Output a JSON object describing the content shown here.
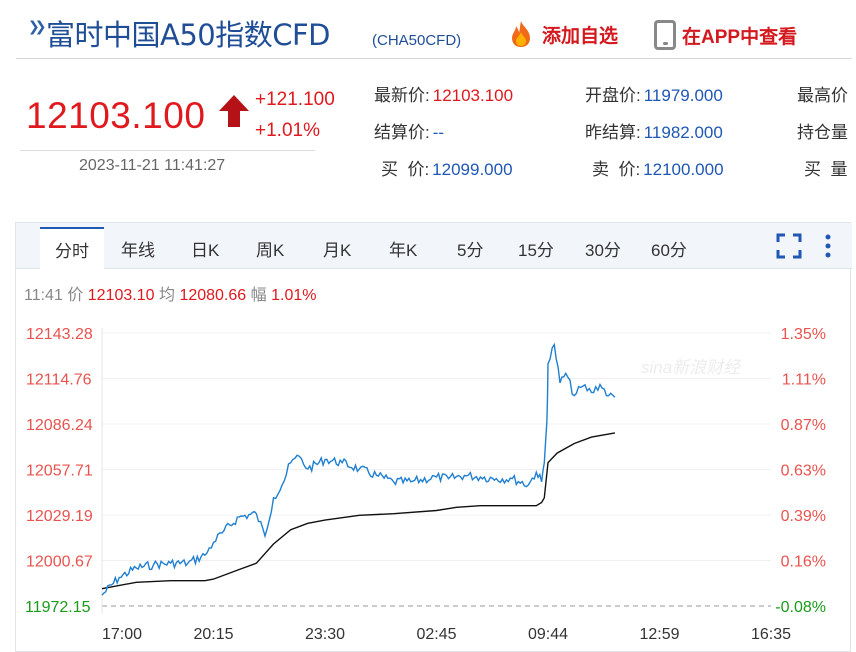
{
  "header": {
    "title": "富时中国A50指数CFD",
    "code": "(CHA50CFD)",
    "add_label": "添加自选",
    "app_label": "在APP中查看"
  },
  "quote": {
    "price": "12103.100",
    "change": "+121.100",
    "change_pct": "+1.01%",
    "datetime": "2023-11-21 11:41:27",
    "fields": {
      "latest": {
        "label": "最新价:",
        "value": "12103.100"
      },
      "open": {
        "label": "开盘价:",
        "value": "11979.000"
      },
      "high": {
        "label": "最高价"
      },
      "settle": {
        "label": "结算价:",
        "value": "--"
      },
      "prev_settle": {
        "label": "昨结算:",
        "value": "11982.000"
      },
      "open_interest": {
        "label": "持仓量"
      },
      "bid": {
        "label": "买  价:",
        "value": "12099.000"
      },
      "ask": {
        "label": "卖  价:",
        "value": "12100.000"
      },
      "bid_vol": {
        "label": "买  量"
      }
    }
  },
  "tabs": [
    "分时",
    "年线",
    "日K",
    "周K",
    "月K",
    "年K",
    "5分",
    "15分",
    "30分",
    "60分"
  ],
  "active_tab": "分时",
  "info": {
    "time": "11:41",
    "price_label": "价",
    "price": "12103.10",
    "avg_label": "均",
    "avg": "12080.66",
    "amp_label": "幅",
    "amp": "1.01%"
  },
  "watermark": "sina新浪财经",
  "colors": {
    "up": "#e0191f",
    "price_line": "#1f7fd1",
    "avg_line": "#111111",
    "down": "#1a9b1a"
  },
  "chart_data": {
    "type": "line",
    "y_left_ticks": [
      "12143.28",
      "12114.76",
      "12086.24",
      "12057.71",
      "12029.19",
      "12000.67",
      "11972.15"
    ],
    "y_right_ticks": [
      "1.35%",
      "1.11%",
      "0.87%",
      "0.63%",
      "0.39%",
      "0.16%",
      "-0.08%"
    ],
    "x_ticks": [
      "17:00",
      "20:15",
      "23:30",
      "02:45",
      "09:44",
      "12:59",
      "16:35"
    ],
    "ylim": [
      11972.15,
      12143.28
    ],
    "series": [
      {
        "kind": "price",
        "x": [
          "17:00",
          "17:30",
          "18:00",
          "18:30",
          "19:00",
          "19:30",
          "20:00",
          "20:15",
          "20:30",
          "21:00",
          "21:30",
          "21:45",
          "22:00",
          "22:15",
          "22:30",
          "22:45",
          "23:00",
          "23:30",
          "00:00",
          "00:30",
          "01:00",
          "01:30",
          "02:00",
          "02:45",
          "03:30",
          "04:30",
          "05:30",
          "06:30",
          "07:30",
          "08:30",
          "09:00",
          "09:20",
          "09:30",
          "09:40",
          "09:44",
          "09:55",
          "10:05",
          "10:15",
          "10:30",
          "10:45",
          "11:00",
          "11:15",
          "11:30",
          "11:41"
        ],
        "values": [
          11979,
          11990,
          11996,
          11998,
          11999,
          11999,
          12004,
          12012,
          12018,
          12028,
          12030,
          12016,
          12040,
          12048,
          12062,
          12066,
          12058,
          12064,
          12062,
          12058,
          12054,
          12050,
          12050,
          12053,
          12052,
          12054,
          12053,
          12052,
          12052,
          12048,
          12056,
          12050,
          12062,
          12088,
          12124,
          12136,
          12112,
          12118,
          12104,
          12110,
          12106,
          12111,
          12104,
          12103
        ]
      },
      {
        "kind": "average",
        "x": [
          "17:00",
          "18:00",
          "19:00",
          "20:00",
          "20:15",
          "21:00",
          "21:30",
          "22:00",
          "22:30",
          "23:00",
          "23:30",
          "00:30",
          "01:30",
          "02:45",
          "04:00",
          "05:30",
          "07:00",
          "08:30",
          "09:00",
          "09:20",
          "09:30",
          "09:44",
          "10:00",
          "10:30",
          "11:00",
          "11:41"
        ],
        "values": [
          11983,
          11987,
          11988,
          11988,
          11989,
          11995,
          11999,
          12011,
          12020,
          12024,
          12026,
          12029,
          12030,
          12032,
          12034,
          12035,
          12035,
          12035,
          12035,
          12037,
          12040,
          12062,
          12068,
          12074,
          12078,
          12080.66
        ]
      }
    ]
  }
}
